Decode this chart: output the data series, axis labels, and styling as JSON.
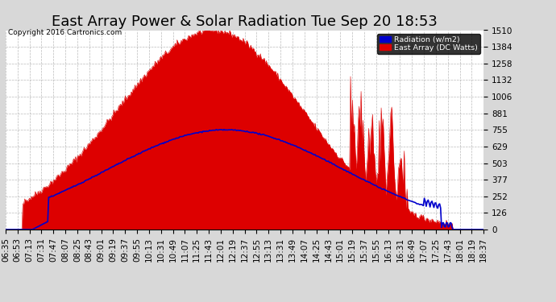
{
  "title": "East Array Power & Solar Radiation Tue Sep 20 18:53",
  "copyright": "Copyright 2016 Cartronics.com",
  "legend_radiation": "Radiation (w/m2)",
  "legend_east_array": "East Array (DC Watts)",
  "yticks": [
    0.0,
    125.8,
    251.6,
    377.4,
    503.2,
    629.0,
    754.9,
    880.7,
    1006.5,
    1132.3,
    1258.1,
    1383.9,
    1509.7
  ],
  "ymax": 1509.7,
  "background_color": "#d8d8d8",
  "plot_bg_color": "#ffffff",
  "grid_color": "#aaaaaa",
  "red_fill_color": "#dd0000",
  "blue_line_color": "#0000cc",
  "title_fontsize": 13,
  "tick_fontsize": 7.5,
  "xtick_labels": [
    "06:35",
    "06:53",
    "07:13",
    "07:31",
    "07:47",
    "08:07",
    "08:25",
    "08:43",
    "09:01",
    "09:19",
    "09:37",
    "09:55",
    "10:13",
    "10:31",
    "10:49",
    "11:07",
    "11:25",
    "11:43",
    "12:01",
    "12:19",
    "12:37",
    "12:55",
    "13:13",
    "13:31",
    "13:49",
    "14:07",
    "14:25",
    "14:43",
    "15:01",
    "15:19",
    "15:37",
    "15:55",
    "16:13",
    "16:31",
    "16:49",
    "17:07",
    "17:25",
    "17:43",
    "18:01",
    "18:19",
    "18:37"
  ]
}
